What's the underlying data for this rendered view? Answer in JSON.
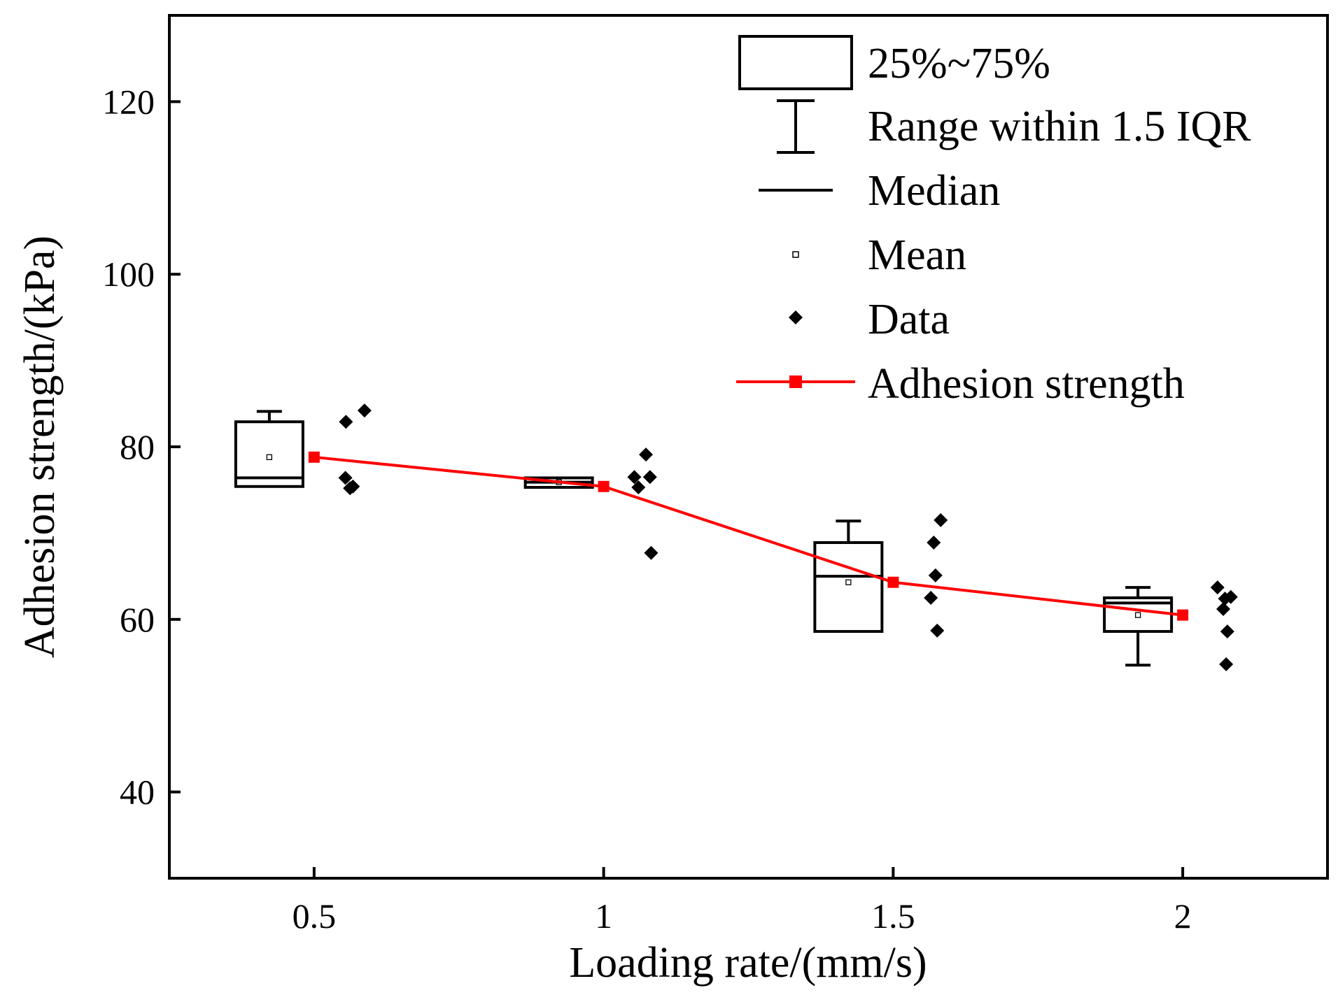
{
  "chart_data": {
    "type": "box",
    "title": "",
    "xlabel": "Loading rate/(mm/s)",
    "ylabel": "Adhesion strength/(kPa)",
    "xlim": [
      0.25,
      2.25
    ],
    "ylim": [
      30,
      130
    ],
    "xticks": [
      0.5,
      1,
      1.5,
      2
    ],
    "xtick_labels": [
      "0.5",
      "1",
      "1.5",
      "2"
    ],
    "yticks": [
      40,
      60,
      80,
      100,
      120
    ],
    "ytick_labels": [
      "40",
      "60",
      "80",
      "100",
      "120"
    ],
    "legend_placement": "top-right",
    "legend": [
      {
        "key": "box",
        "label": "25%~75%"
      },
      {
        "key": "whisker",
        "label": "Range within 1.5 IQR"
      },
      {
        "key": "median",
        "label": "Median"
      },
      {
        "key": "mean",
        "label": "Mean"
      },
      {
        "key": "data",
        "label": "Data"
      },
      {
        "key": "line",
        "label": "Adhesion strength"
      }
    ],
    "groups": [
      {
        "x": 0.5,
        "q1": 75.4,
        "median": 76.4,
        "q3": 82.9,
        "whisker_low": 75.4,
        "whisker_high": 84.1,
        "mean": 78.8,
        "data": [
          {
            "y": 82.9,
            "dx": 0.055
          },
          {
            "y": 84.2,
            "dx": 0.087
          },
          {
            "y": 76.4,
            "dx": 0.054
          },
          {
            "y": 75.2,
            "dx": 0.062
          },
          {
            "y": 75.4,
            "dx": 0.067
          }
        ]
      },
      {
        "x": 1,
        "q1": 75.3,
        "median": 75.9,
        "q3": 76.4,
        "whisker_low": 75.3,
        "whisker_high": 76.4,
        "mean": 75.9,
        "data": [
          {
            "y": 76.5,
            "dx": 0.053
          },
          {
            "y": 76.5,
            "dx": 0.08
          },
          {
            "y": 79.1,
            "dx": 0.073
          },
          {
            "y": 75.3,
            "dx": 0.06
          },
          {
            "y": 67.7,
            "dx": 0.082
          }
        ]
      },
      {
        "x": 1.5,
        "q1": 58.6,
        "median": 65.0,
        "q3": 68.9,
        "whisker_low": 58.6,
        "whisker_high": 71.4,
        "mean": 64.3,
        "data": [
          {
            "y": 71.5,
            "dx": 0.082
          },
          {
            "y": 68.9,
            "dx": 0.07
          },
          {
            "y": 65.1,
            "dx": 0.073
          },
          {
            "y": 62.5,
            "dx": 0.065
          },
          {
            "y": 58.7,
            "dx": 0.076
          }
        ]
      },
      {
        "x": 2,
        "q1": 58.6,
        "median": 61.9,
        "q3": 62.5,
        "whisker_low": 54.7,
        "whisker_high": 63.7,
        "mean": 60.5,
        "data": [
          {
            "y": 63.7,
            "dx": 0.06
          },
          {
            "y": 62.4,
            "dx": 0.073
          },
          {
            "y": 62.6,
            "dx": 0.083
          },
          {
            "y": 61.2,
            "dx": 0.07
          },
          {
            "y": 58.6,
            "dx": 0.077
          },
          {
            "y": 54.8,
            "dx": 0.075
          }
        ]
      }
    ],
    "line_series": {
      "name": "Adhesion strength",
      "color": "#ff0000",
      "x": [
        0.5,
        1,
        1.5,
        2
      ],
      "y": [
        78.8,
        75.4,
        64.3,
        60.5
      ]
    },
    "colors": {
      "axis": "#000000",
      "box": "#000000",
      "data": "#000000",
      "line": "#ff0000"
    }
  }
}
